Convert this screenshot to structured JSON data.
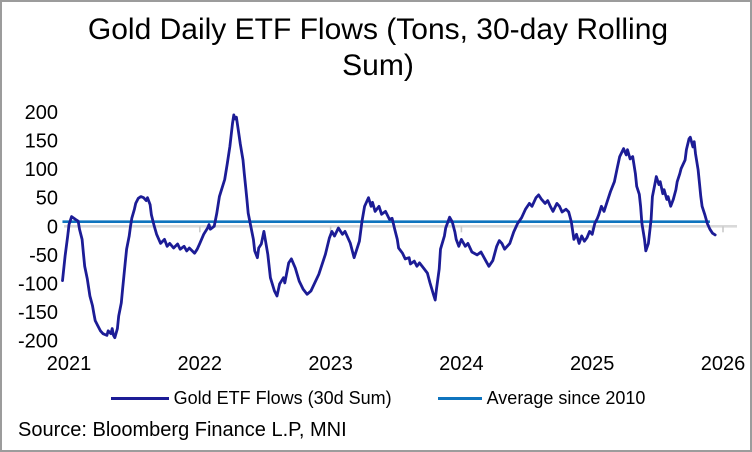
{
  "title": "Gold Daily ETF Flows (Tons, 30-day Rolling Sum)",
  "source": "Source: Bloomberg Finance L.P, MNI",
  "legend": [
    {
      "label": "Gold ETF Flows (30d Sum)",
      "color": "#1c1c96"
    },
    {
      "label": "Average since 2010",
      "color": "#0f74be"
    }
  ],
  "chart_data": {
    "type": "line",
    "title": "Gold Daily ETF Flows (Tons, 30-day Rolling Sum)",
    "xlabel": "",
    "ylabel": "",
    "ylim": [
      -200,
      200
    ],
    "xlim": [
      2020.95,
      2026.05
    ],
    "grid": false,
    "legend_position": "bottom",
    "y_ticks": [
      200,
      150,
      100,
      50,
      0,
      -50,
      -100,
      -150,
      -200
    ],
    "x_ticks": [
      {
        "value": 2021,
        "label": "2021"
      },
      {
        "value": 2022,
        "label": "2022"
      },
      {
        "value": 2023,
        "label": "2023"
      },
      {
        "value": 2024,
        "label": "2024"
      },
      {
        "value": 2025,
        "label": "2025"
      },
      {
        "value": 2026,
        "label": "2026"
      }
    ],
    "axis": {
      "zero_line_color": "#d9d9d9",
      "tick_color": "#c9c9c9",
      "label_color": "#000000"
    },
    "series": [
      {
        "name": "Gold ETF Flows (30d Sum)",
        "color": "#1c1c96",
        "points": [
          [
            2020.95,
            -95
          ],
          [
            2020.97,
            -52
          ],
          [
            2020.99,
            -17
          ],
          [
            2021.0,
            3
          ],
          [
            2021.02,
            17
          ],
          [
            2021.05,
            12
          ],
          [
            2021.07,
            9
          ],
          [
            2021.08,
            -5
          ],
          [
            2021.1,
            -23
          ],
          [
            2021.11,
            -47
          ],
          [
            2021.12,
            -70
          ],
          [
            2021.14,
            -92
          ],
          [
            2021.16,
            -122
          ],
          [
            2021.18,
            -139
          ],
          [
            2021.19,
            -153
          ],
          [
            2021.2,
            -165
          ],
          [
            2021.22,
            -174
          ],
          [
            2021.24,
            -183
          ],
          [
            2021.26,
            -188
          ],
          [
            2021.29,
            -191
          ],
          [
            2021.3,
            -183
          ],
          [
            2021.32,
            -188
          ],
          [
            2021.33,
            -179
          ],
          [
            2021.34,
            -191
          ],
          [
            2021.35,
            -195
          ],
          [
            2021.37,
            -179
          ],
          [
            2021.38,
            -157
          ],
          [
            2021.4,
            -134
          ],
          [
            2021.41,
            -110
          ],
          [
            2021.42,
            -87
          ],
          [
            2021.43,
            -64
          ],
          [
            2021.44,
            -40
          ],
          [
            2021.46,
            -17
          ],
          [
            2021.47,
            0
          ],
          [
            2021.48,
            14
          ],
          [
            2021.5,
            30
          ],
          [
            2021.51,
            40
          ],
          [
            2021.53,
            49
          ],
          [
            2021.55,
            52
          ],
          [
            2021.57,
            50
          ],
          [
            2021.59,
            45
          ],
          [
            2021.6,
            50
          ],
          [
            2021.62,
            38
          ],
          [
            2021.63,
            20
          ],
          [
            2021.65,
            2
          ],
          [
            2021.67,
            -14
          ],
          [
            2021.7,
            -30
          ],
          [
            2021.73,
            -23
          ],
          [
            2021.75,
            -35
          ],
          [
            2021.77,
            -30
          ],
          [
            2021.8,
            -38
          ],
          [
            2021.83,
            -31
          ],
          [
            2021.85,
            -40
          ],
          [
            2021.88,
            -35
          ],
          [
            2021.9,
            -43
          ],
          [
            2021.92,
            -38
          ],
          [
            2021.96,
            -47
          ],
          [
            2021.98,
            -40
          ],
          [
            2022.0,
            -30
          ],
          [
            2022.03,
            -14
          ],
          [
            2022.06,
            -3
          ],
          [
            2022.07,
            3
          ],
          [
            2022.08,
            -5
          ],
          [
            2022.11,
            0
          ],
          [
            2022.13,
            23
          ],
          [
            2022.15,
            52
          ],
          [
            2022.19,
            82
          ],
          [
            2022.21,
            110
          ],
          [
            2022.23,
            140
          ],
          [
            2022.24,
            160
          ],
          [
            2022.25,
            180
          ],
          [
            2022.26,
            195
          ],
          [
            2022.27,
            188
          ],
          [
            2022.28,
            191
          ],
          [
            2022.3,
            160
          ],
          [
            2022.31,
            144
          ],
          [
            2022.33,
            116
          ],
          [
            2022.34,
            92
          ],
          [
            2022.35,
            70
          ],
          [
            2022.36,
            47
          ],
          [
            2022.37,
            23
          ],
          [
            2022.39,
            0
          ],
          [
            2022.41,
            -23
          ],
          [
            2022.42,
            -43
          ],
          [
            2022.44,
            -55
          ],
          [
            2022.45,
            -38
          ],
          [
            2022.47,
            -31
          ],
          [
            2022.49,
            -9
          ],
          [
            2022.52,
            -49
          ],
          [
            2022.54,
            -90
          ],
          [
            2022.57,
            -113
          ],
          [
            2022.59,
            -122
          ],
          [
            2022.61,
            -101
          ],
          [
            2022.64,
            -90
          ],
          [
            2022.65,
            -99
          ],
          [
            2022.68,
            -64
          ],
          [
            2022.7,
            -57
          ],
          [
            2022.73,
            -73
          ],
          [
            2022.76,
            -96
          ],
          [
            2022.79,
            -110
          ],
          [
            2022.82,
            -119
          ],
          [
            2022.85,
            -113
          ],
          [
            2022.91,
            -84
          ],
          [
            2022.96,
            -49
          ],
          [
            2022.99,
            -21
          ],
          [
            2023.01,
            -9
          ],
          [
            2023.03,
            -17
          ],
          [
            2023.06,
            -3
          ],
          [
            2023.09,
            -14
          ],
          [
            2023.11,
            -9
          ],
          [
            2023.15,
            -29
          ],
          [
            2023.18,
            -55
          ],
          [
            2023.22,
            -26
          ],
          [
            2023.24,
            9
          ],
          [
            2023.26,
            35
          ],
          [
            2023.29,
            50
          ],
          [
            2023.31,
            35
          ],
          [
            2023.32,
            42
          ],
          [
            2023.34,
            26
          ],
          [
            2023.37,
            35
          ],
          [
            2023.39,
            21
          ],
          [
            2023.42,
            26
          ],
          [
            2023.45,
            12
          ],
          [
            2023.47,
            14
          ],
          [
            2023.49,
            -5
          ],
          [
            2023.51,
            -23
          ],
          [
            2023.52,
            -38
          ],
          [
            2023.55,
            -47
          ],
          [
            2023.57,
            -57
          ],
          [
            2023.6,
            -55
          ],
          [
            2023.61,
            -66
          ],
          [
            2023.64,
            -61
          ],
          [
            2023.66,
            -70
          ],
          [
            2023.68,
            -64
          ],
          [
            2023.71,
            -73
          ],
          [
            2023.74,
            -82
          ],
          [
            2023.76,
            -99
          ],
          [
            2023.79,
            -122
          ],
          [
            2023.8,
            -129
          ],
          [
            2023.81,
            -110
          ],
          [
            2023.83,
            -75
          ],
          [
            2023.84,
            -40
          ],
          [
            2023.87,
            -17
          ],
          [
            2023.88,
            -3
          ],
          [
            2023.91,
            16
          ],
          [
            2023.93,
            8
          ],
          [
            2023.95,
            -10
          ],
          [
            2023.96,
            -23
          ],
          [
            2023.98,
            -35
          ],
          [
            2024.0,
            -23
          ],
          [
            2024.03,
            -35
          ],
          [
            2024.05,
            -30
          ],
          [
            2024.08,
            -45
          ],
          [
            2024.12,
            -50
          ],
          [
            2024.15,
            -45
          ],
          [
            2024.19,
            -62
          ],
          [
            2024.21,
            -70
          ],
          [
            2024.24,
            -60
          ],
          [
            2024.27,
            -35
          ],
          [
            2024.29,
            -25
          ],
          [
            2024.31,
            -30
          ],
          [
            2024.33,
            -40
          ],
          [
            2024.37,
            -30
          ],
          [
            2024.4,
            -10
          ],
          [
            2024.43,
            5
          ],
          [
            2024.46,
            15
          ],
          [
            2024.49,
            30
          ],
          [
            2024.52,
            40
          ],
          [
            2024.54,
            35
          ],
          [
            2024.57,
            50
          ],
          [
            2024.59,
            55
          ],
          [
            2024.61,
            48
          ],
          [
            2024.64,
            40
          ],
          [
            2024.66,
            45
          ],
          [
            2024.68,
            35
          ],
          [
            2024.7,
            26
          ],
          [
            2024.73,
            40
          ],
          [
            2024.75,
            35
          ],
          [
            2024.77,
            25
          ],
          [
            2024.8,
            30
          ],
          [
            2024.82,
            25
          ],
          [
            2024.84,
            8
          ],
          [
            2024.86,
            -23
          ],
          [
            2024.88,
            -14
          ],
          [
            2024.9,
            -30
          ],
          [
            2024.92,
            -17
          ],
          [
            2024.94,
            -26
          ],
          [
            2024.96,
            -20
          ],
          [
            2024.98,
            -9
          ],
          [
            2025.0,
            -14
          ],
          [
            2025.02,
            5
          ],
          [
            2025.04,
            14
          ],
          [
            2025.05,
            20
          ],
          [
            2025.07,
            35
          ],
          [
            2025.09,
            26
          ],
          [
            2025.12,
            47
          ],
          [
            2025.14,
            61
          ],
          [
            2025.17,
            78
          ],
          [
            2025.19,
            101
          ],
          [
            2025.21,
            122
          ],
          [
            2025.24,
            136
          ],
          [
            2025.26,
            125
          ],
          [
            2025.27,
            134
          ],
          [
            2025.29,
            118
          ],
          [
            2025.31,
            122
          ],
          [
            2025.33,
            92
          ],
          [
            2025.34,
            70
          ],
          [
            2025.36,
            56
          ],
          [
            2025.37,
            35
          ],
          [
            2025.38,
            5
          ],
          [
            2025.4,
            -23
          ],
          [
            2025.41,
            -43
          ],
          [
            2025.43,
            -30
          ],
          [
            2025.45,
            12
          ],
          [
            2025.46,
            52
          ],
          [
            2025.48,
            75
          ],
          [
            2025.49,
            87
          ],
          [
            2025.51,
            73
          ],
          [
            2025.52,
            78
          ],
          [
            2025.54,
            57
          ],
          [
            2025.55,
            64
          ],
          [
            2025.57,
            47
          ],
          [
            2025.58,
            52
          ],
          [
            2025.6,
            35
          ],
          [
            2025.62,
            47
          ],
          [
            2025.64,
            64
          ],
          [
            2025.65,
            78
          ],
          [
            2025.67,
            92
          ],
          [
            2025.68,
            101
          ],
          [
            2025.71,
            116
          ],
          [
            2025.72,
            134
          ],
          [
            2025.74,
            153
          ],
          [
            2025.75,
            156
          ],
          [
            2025.77,
            139
          ],
          [
            2025.78,
            148
          ],
          [
            2025.79,
            127
          ],
          [
            2025.81,
            99
          ],
          [
            2025.82,
            75
          ],
          [
            2025.83,
            52
          ],
          [
            2025.84,
            35
          ],
          [
            2025.86,
            21
          ],
          [
            2025.88,
            5
          ],
          [
            2025.9,
            -5
          ],
          [
            2025.92,
            -12
          ],
          [
            2025.94,
            -15
          ]
        ]
      },
      {
        "name": "Average since 2010",
        "color": "#0f74be",
        "value": 8,
        "x_start": 2020.95,
        "x_end": 2025.9
      }
    ]
  }
}
